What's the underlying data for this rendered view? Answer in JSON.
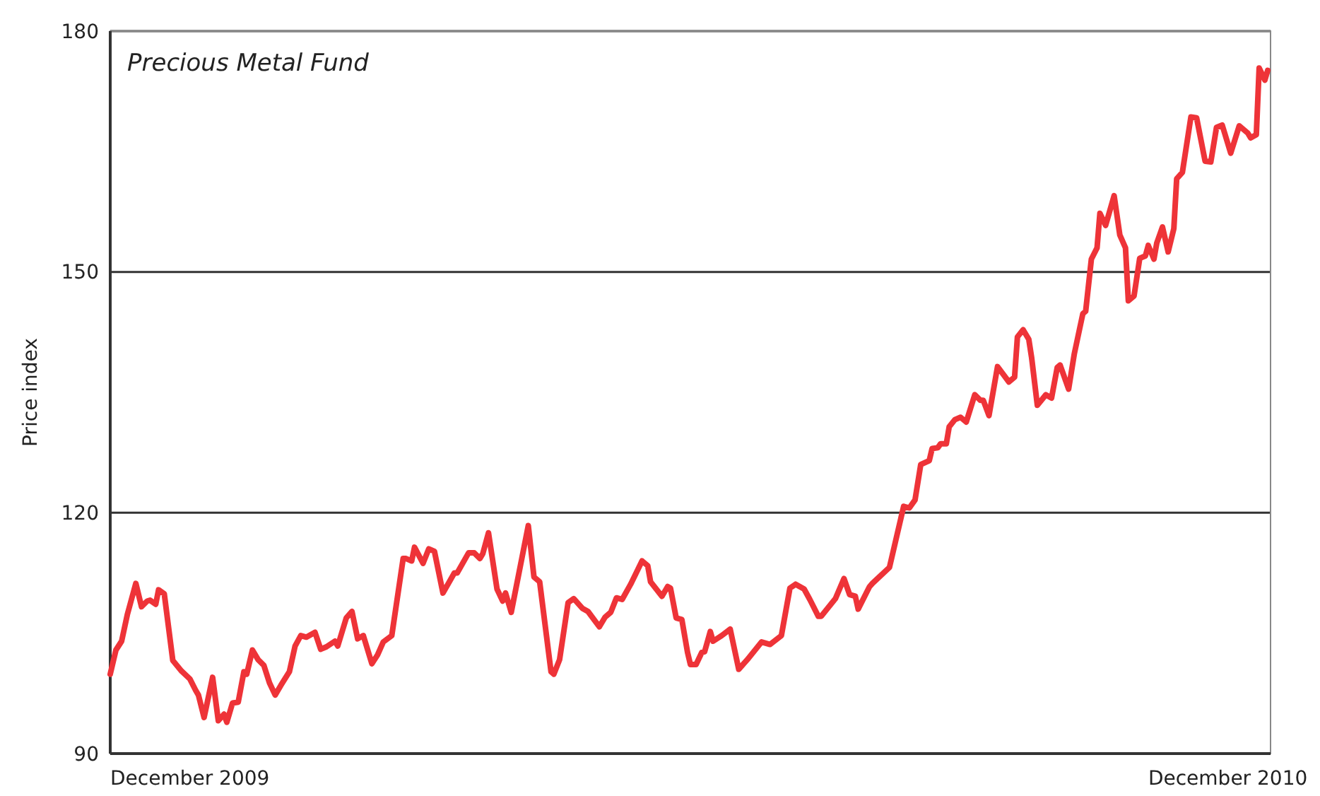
{
  "chart_data": {
    "type": "line",
    "title": "Precious Metal Fund",
    "ylabel": "Price index",
    "xlim": [
      "2009-11-03",
      "2010-12-16"
    ],
    "xticks": [
      {
        "value": "2009-12-01",
        "label": "December 2009"
      },
      {
        "value": "2010-12-01",
        "label": "December 2010"
      }
    ],
    "ylim": [
      90,
      180
    ],
    "yticks": [
      90,
      120,
      150,
      180
    ],
    "grid": "y",
    "line_style": "solid",
    "series": [
      {
        "color": "#ee3338",
        "x": [
          "2009-11-03",
          "2009-11-05",
          "2009-11-07",
          "2009-11-09",
          "2009-11-12",
          "2009-11-14",
          "2009-11-16",
          "2009-11-17",
          "2009-11-19",
          "2009-11-20",
          "2009-11-22",
          "2009-11-25",
          "2009-11-28",
          "2009-12-01",
          "2009-12-03",
          "2009-12-04",
          "2009-12-06",
          "2009-12-09",
          "2009-12-11",
          "2009-12-13",
          "2009-12-14",
          "2009-12-16",
          "2009-12-18",
          "2009-12-20",
          "2009-12-21",
          "2009-12-23",
          "2009-12-25",
          "2009-12-27",
          "2009-12-29",
          "2009-12-31",
          "2010-01-02",
          "2010-01-05",
          "2010-01-07",
          "2010-01-09",
          "2010-01-11",
          "2010-01-14",
          "2010-01-16",
          "2010-01-18",
          "2010-01-21",
          "2010-01-22",
          "2010-01-25",
          "2010-01-27",
          "2010-01-29",
          "2010-01-31",
          "2010-02-03",
          "2010-02-05",
          "2010-02-07",
          "2010-02-10",
          "2010-02-14",
          "2010-02-15",
          "2010-02-17",
          "2010-02-18",
          "2010-02-21",
          "2010-02-23",
          "2010-02-25",
          "2010-02-28",
          "2010-03-04",
          "2010-03-05",
          "2010-03-09",
          "2010-03-11",
          "2010-03-13",
          "2010-03-14",
          "2010-03-16",
          "2010-03-19",
          "2010-03-21",
          "2010-03-22",
          "2010-03-24",
          "2010-03-30",
          "2010-04-01",
          "2010-04-03",
          "2010-04-07",
          "2010-04-08",
          "2010-04-10",
          "2010-04-13",
          "2010-04-15",
          "2010-04-18",
          "2010-04-20",
          "2010-04-24",
          "2010-04-26",
          "2010-04-28",
          "2010-04-30",
          "2010-05-02",
          "2010-05-05",
          "2010-05-09",
          "2010-05-11",
          "2010-05-12",
          "2010-05-16",
          "2010-05-18",
          "2010-05-19",
          "2010-05-21",
          "2010-05-23",
          "2010-05-25",
          "2010-05-26",
          "2010-05-28",
          "2010-05-30",
          "2010-05-31",
          "2010-06-02",
          "2010-06-03",
          "2010-06-06",
          "2010-06-09",
          "2010-06-12",
          "2010-06-15",
          "2010-06-20",
          "2010-06-23",
          "2010-06-27",
          "2010-06-30",
          "2010-07-02",
          "2010-07-05",
          "2010-07-07",
          "2010-07-10",
          "2010-07-11",
          "2010-07-16",
          "2010-07-19",
          "2010-07-21",
          "2010-07-23",
          "2010-07-24",
          "2010-07-28",
          "2010-07-29",
          "2010-08-04",
          "2010-08-09",
          "2010-08-11",
          "2010-08-13",
          "2010-08-15",
          "2010-08-18",
          "2010-08-19",
          "2010-08-21",
          "2010-08-22",
          "2010-08-24",
          "2010-08-25",
          "2010-08-27",
          "2010-08-29",
          "2010-08-31",
          "2010-09-03",
          "2010-09-05",
          "2010-09-06",
          "2010-09-08",
          "2010-09-11",
          "2010-09-15",
          "2010-09-17",
          "2010-09-18",
          "2010-09-20",
          "2010-09-22",
          "2010-09-23",
          "2010-09-25",
          "2010-09-28",
          "2010-09-30",
          "2010-10-02",
          "2010-10-03",
          "2010-10-06",
          "2010-10-08",
          "2010-10-11",
          "2010-10-12",
          "2010-10-14",
          "2010-10-16",
          "2010-10-17",
          "2010-10-19",
          "2010-10-22",
          "2010-10-24",
          "2010-10-26",
          "2010-10-27",
          "2010-10-29",
          "2010-10-31",
          "2010-11-02",
          "2010-11-03",
          "2010-11-05",
          "2010-11-06",
          "2010-11-08",
          "2010-11-10",
          "2010-11-12",
          "2010-11-13",
          "2010-11-15",
          "2010-11-18",
          "2010-11-20",
          "2010-11-23",
          "2010-11-25",
          "2010-11-27",
          "2010-11-29",
          "2010-12-02",
          "2010-12-05",
          "2010-12-08",
          "2010-12-09",
          "2010-12-11",
          "2010-12-12",
          "2010-12-14",
          "2010-12-15"
        ],
        "values": [
          99.9,
          102.9,
          104.0,
          107.3,
          111.2,
          108.3,
          109.0,
          109.1,
          108.6,
          110.4,
          109.9,
          101.6,
          100.3,
          99.3,
          97.9,
          97.3,
          94.5,
          99.5,
          94.1,
          94.9,
          93.9,
          96.3,
          96.4,
          100.2,
          99.9,
          102.9,
          101.7,
          101.0,
          98.8,
          97.3,
          98.5,
          100.2,
          103.4,
          104.7,
          104.5,
          105.1,
          103.0,
          103.3,
          104.0,
          103.4,
          106.9,
          107.7,
          104.3,
          104.7,
          101.2,
          102.3,
          103.9,
          104.7,
          114.3,
          114.3,
          114.0,
          115.7,
          113.7,
          115.5,
          115.2,
          110.0,
          112.5,
          112.5,
          115.0,
          115.0,
          114.3,
          114.9,
          117.5,
          110.5,
          109.0,
          110.0,
          107.6,
          118.4,
          112.0,
          111.4,
          100.2,
          99.9,
          101.7,
          108.8,
          109.3,
          108.1,
          107.7,
          105.8,
          107.0,
          107.6,
          109.4,
          109.2,
          111.1,
          114.0,
          113.4,
          111.4,
          109.6,
          110.8,
          110.6,
          106.9,
          106.7,
          102.6,
          101.1,
          101.1,
          102.6,
          102.7,
          105.2,
          104.0,
          104.7,
          105.5,
          100.5,
          101.7,
          103.9,
          103.6,
          104.7,
          110.6,
          111.1,
          110.5,
          109.2,
          107.1,
          107.1,
          109.3,
          111.8,
          109.8,
          109.6,
          108.0,
          110.8,
          111.2,
          113.2,
          120.8,
          120.6,
          121.6,
          126.0,
          126.5,
          128.0,
          128.1,
          128.6,
          128.6,
          130.7,
          131.6,
          131.9,
          131.3,
          134.7,
          134.0,
          134.0,
          132.1,
          138.2,
          136.3,
          136.9,
          141.9,
          142.8,
          141.6,
          139.3,
          133.4,
          134.7,
          134.3,
          138.1,
          138.4,
          135.4,
          139.8,
          144.8,
          145.1,
          151.6,
          153.0,
          157.3,
          155.8,
          159.5,
          154.6,
          153.0,
          146.4,
          147.0,
          151.7,
          152.0,
          153.3,
          151.6,
          153.6,
          155.6,
          152.5,
          155.4,
          161.6,
          162.4,
          169.3,
          169.2,
          163.8,
          163.7,
          168.0,
          168.3,
          164.8,
          168.2,
          167.3,
          166.7,
          167.1,
          175.4,
          173.9,
          175.1
        ]
      }
    ]
  }
}
